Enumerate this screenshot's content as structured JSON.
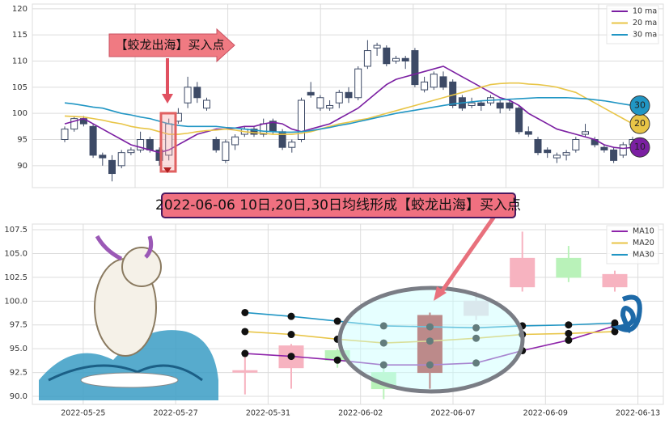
{
  "chart_data": [
    {
      "type": "candlestick",
      "annotation": "【蛟龙出海】买入点",
      "ylim": [
        85.8,
        120.9
      ],
      "yticks": [
        90,
        95,
        100,
        105,
        110,
        115,
        120
      ],
      "grid": true,
      "legend": "upper right",
      "up_color": "#ffffff",
      "down_color": "#3d4a66",
      "candles": {
        "open": [
          95,
          97,
          99,
          97.5,
          92,
          91,
          90,
          92.5,
          93,
          95,
          93,
          92,
          98.5,
          102,
          105,
          101,
          95,
          91,
          94,
          96,
          97,
          96,
          98.5,
          96.5,
          93.5,
          95,
          104,
          101,
          101,
          102,
          104,
          103,
          109,
          112.5,
          112.5,
          110,
          110.5,
          112,
          104.5,
          105,
          107,
          106,
          103,
          101.5,
          102,
          102,
          102,
          102,
          101,
          96.5,
          95,
          93,
          91.5,
          92,
          93,
          96,
          95,
          93.5,
          93,
          92,
          94
        ],
        "high": [
          97.5,
          99.5,
          99.5,
          98,
          92.5,
          92,
          93,
          93.5,
          96.5,
          95.5,
          93.5,
          99,
          101,
          107,
          106,
          103,
          95.5,
          95,
          96,
          97.5,
          97.5,
          99,
          99,
          97,
          95,
          103,
          106,
          103.5,
          102.5,
          104.5,
          105,
          109,
          114,
          113.5,
          113,
          111,
          111,
          112.5,
          107,
          108,
          108,
          106.5,
          103.5,
          103,
          102.5,
          103.5,
          102.5,
          102.5,
          101.5,
          97.5,
          95.5,
          93.5,
          92.5,
          93,
          95.5,
          98,
          95.5,
          94,
          93.5,
          94.5,
          95.5
        ],
        "low": [
          94.5,
          96.5,
          97.5,
          91.5,
          90,
          87,
          89.5,
          92,
          92.5,
          92.5,
          90,
          91,
          98,
          101,
          102,
          100.5,
          92.5,
          90.5,
          93,
          95.5,
          95.5,
          95.5,
          96,
          93,
          92.5,
          94.5,
          103,
          100.5,
          100.5,
          101,
          102,
          102.5,
          108.5,
          111,
          109,
          109.5,
          108.5,
          105,
          104,
          104.5,
          104.5,
          101,
          100.5,
          101,
          100.5,
          101.5,
          100,
          100.5,
          96,
          95.5,
          92,
          91.5,
          90.5,
          91,
          92.5,
          95.5,
          93.5,
          92.5,
          90.5,
          91.5,
          93.5
        ],
        "close": [
          97,
          99,
          98,
          92,
          91.5,
          88.5,
          92.5,
          93,
          95,
          93,
          91,
          98,
          100,
          105,
          103,
          102.5,
          93,
          94.5,
          95.5,
          97,
          96,
          98,
          96.5,
          93.5,
          94.5,
          102.5,
          103.5,
          103,
          101.5,
          104,
          103,
          108.5,
          112,
          113,
          109.5,
          110.5,
          110,
          105.5,
          106,
          107.5,
          105,
          101.5,
          101,
          102,
          101.5,
          103,
          101,
          101,
          96.5,
          96,
          92.5,
          92.5,
          92,
          92.5,
          95,
          96.5,
          94,
          93,
          91,
          94,
          95
        ]
      },
      "series": [
        {
          "name": "10 ma",
          "end_label": "10",
          "color": "#7b1fa2",
          "values": [
            98,
            98.5,
            99,
            98,
            97,
            96,
            95,
            94,
            93.5,
            93,
            92.5,
            93,
            94,
            95,
            96,
            96.5,
            97,
            97,
            97.2,
            97.5,
            97.5,
            98,
            98.3,
            98,
            97,
            96.5,
            97,
            97.5,
            98,
            99,
            100,
            101,
            102.5,
            104,
            105.5,
            106.5,
            107,
            107.5,
            108,
            108.5,
            109,
            108,
            107,
            106,
            105,
            104,
            103,
            102.5,
            101.5,
            100,
            99,
            98,
            97,
            96.5,
            96,
            95.5,
            95,
            94,
            93.5,
            93.3,
            93.5
          ]
        },
        {
          "name": "20 ma",
          "end_label": "20",
          "color": "#e8c547",
          "values": [
            99.5,
            99.4,
            99.3,
            99,
            98.7,
            98.3,
            98,
            97.5,
            97.2,
            97,
            96.5,
            96,
            96,
            96.2,
            96.5,
            96.7,
            96.8,
            97,
            96.8,
            96.5,
            96.3,
            96.2,
            96,
            96,
            96,
            96.2,
            96.5,
            97,
            97.5,
            98,
            98.3,
            98.7,
            99,
            99.5,
            100,
            100.5,
            101,
            101.5,
            102,
            102.5,
            103,
            103.5,
            104,
            104.5,
            105,
            105.5,
            105.7,
            105.8,
            105.8,
            105.6,
            105.5,
            105.3,
            105,
            104.5,
            104,
            103,
            102,
            101,
            100,
            99,
            98
          ]
        },
        {
          "name": "30 ma",
          "end_label": "30",
          "color": "#2196c4",
          "values": [
            102,
            101.8,
            101.5,
            101.2,
            101,
            100.5,
            100,
            99.7,
            99.3,
            99,
            98.5,
            98,
            97.7,
            97.5,
            97.5,
            97.5,
            97.5,
            97.3,
            97.2,
            97,
            96.8,
            96.6,
            96.5,
            96.4,
            96.4,
            96.5,
            96.7,
            97,
            97.3,
            97.7,
            98,
            98.4,
            98.8,
            99.2,
            99.6,
            100,
            100.3,
            100.6,
            100.9,
            101.2,
            101.5,
            101.8,
            102,
            102.2,
            102.4,
            102.5,
            102.6,
            102.7,
            102.8,
            102.9,
            103,
            103,
            103,
            103,
            102.9,
            102.8,
            102.6,
            102.4,
            102.1,
            101.8,
            101.5
          ]
        }
      ]
    },
    {
      "type": "candlestick",
      "annotation": "2022-06-06 10日,20日,30日均线形成【蛟龙出海】买入点",
      "ylim": [
        89.15,
        108.1
      ],
      "yticks": [
        {
          "value": 90,
          "label": "90.0"
        },
        92.5,
        {
          "value": 95,
          "label": "95.0"
        },
        97.5,
        {
          "value": 100,
          "label": "100.0"
        },
        102.5,
        {
          "value": 105,
          "label": "105.0"
        },
        107.5
      ],
      "xlim": [
        -4.6,
        9.05
      ],
      "xticks": [
        {
          "value": -3.5,
          "label": "2022-05-25"
        },
        {
          "value": -1.5,
          "label": "2022-05-27"
        },
        {
          "value": 0.5,
          "label": "2022-05-31"
        },
        {
          "value": 2.5,
          "label": "2022-06-02"
        },
        {
          "value": 4.5,
          "label": "2022-06-07"
        },
        {
          "value": 6.5,
          "label": "2022-06-09"
        },
        {
          "value": 8.5,
          "label": "2022-06-13"
        }
      ],
      "grid": true,
      "legend": "upper right",
      "markers": true,
      "x": [
        0,
        1,
        2,
        3,
        4,
        5,
        6,
        7,
        8
      ],
      "candles": {
        "open": [
          92.7,
          93,
          94.8,
          92.5,
          92.5,
          98.5,
          101.5,
          104.5,
          101.5
        ],
        "high": [
          94.5,
          95.5,
          95,
          93,
          98.8,
          101,
          107.3,
          105.8,
          103.2
        ],
        "low": [
          90.2,
          90.8,
          93,
          89.7,
          90.8,
          98,
          101,
          102,
          101
        ],
        "close": [
          92.7,
          95.3,
          93.8,
          90.8,
          98.5,
          100,
          104.5,
          102.5,
          102.8
        ],
        "colors": [
          "#f7b3c0",
          "#f7b3c0",
          "#b9f2b9",
          "#b9f2b9",
          "#b22a2a",
          "#e9d6df",
          "#f7b3c0",
          "#b9f2b9",
          "#f7b3c0"
        ]
      },
      "series": [
        {
          "name": "MA10",
          "color": "#8e24aa",
          "values": [
            94.5,
            94.2,
            93.8,
            93.3,
            93.3,
            93.5,
            94.8,
            95.9,
            97.4
          ]
        },
        {
          "name": "MA20",
          "color": "#e8c547",
          "values": [
            96.8,
            96.5,
            96.0,
            95.6,
            95.8,
            96.1,
            96.5,
            96.6,
            96.8
          ]
        },
        {
          "name": "MA30",
          "color": "#2196c4",
          "values": [
            98.8,
            98.4,
            97.9,
            97.4,
            97.3,
            97.2,
            97.4,
            97.5,
            97.7
          ]
        }
      ]
    }
  ]
}
